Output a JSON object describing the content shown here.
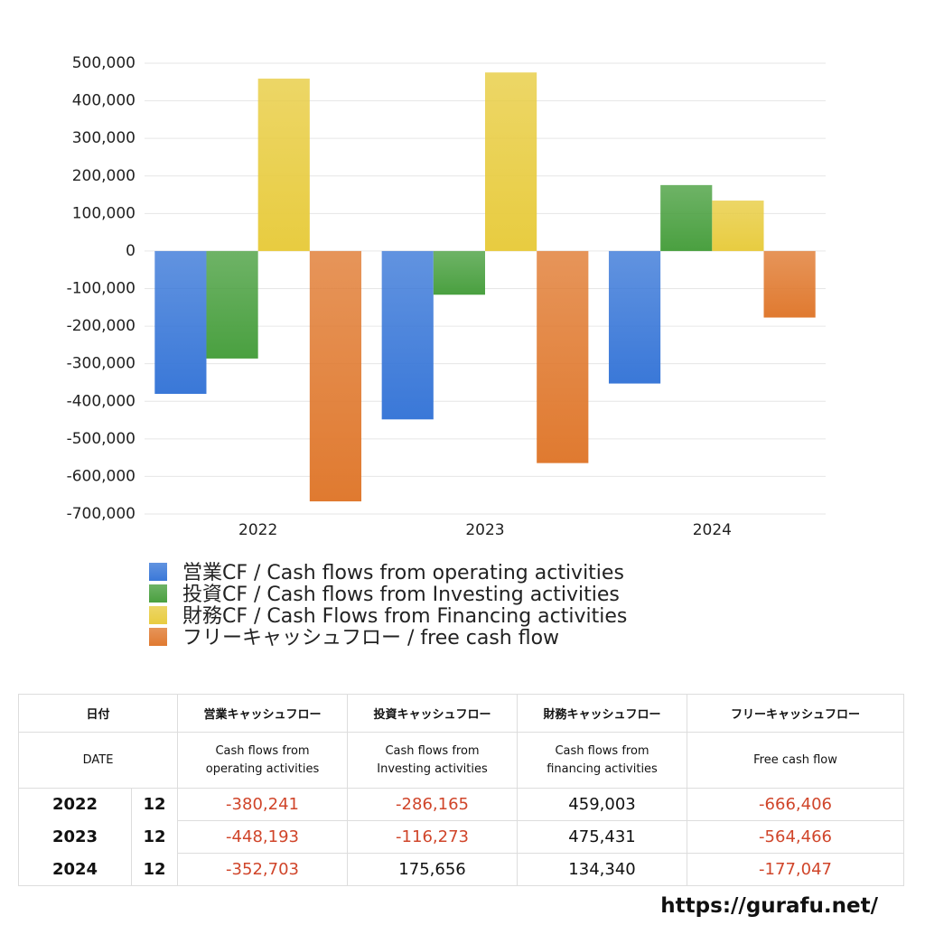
{
  "chart_data": {
    "type": "bar",
    "categories": [
      "2022",
      "2023",
      "2024"
    ],
    "series": [
      {
        "name": "営業CF / Cash flows from operating activities",
        "color": "#3a78d8",
        "values": [
          -380241,
          -448193,
          -352703
        ]
      },
      {
        "name": "投資CF / Cash flows from Investing activities",
        "color": "#4aa040",
        "values": [
          -286165,
          -116273,
          175656
        ]
      },
      {
        "name": "財務CF / Cash Flows from Financing activities",
        "color": "#e8cc40",
        "values": [
          459003,
          475431,
          134340
        ]
      },
      {
        "name": "フリーキャッシュフロー / free cash flow",
        "color": "#e07a30",
        "values": [
          -666406,
          -564466,
          -177047
        ]
      }
    ],
    "ylim": [
      -700000,
      500000
    ],
    "yticks": [
      {
        "value": 500000,
        "label": "500,000"
      },
      {
        "value": 400000,
        "label": "400,000"
      },
      {
        "value": 300000,
        "label": "300,000"
      },
      {
        "value": 200000,
        "label": "200,000"
      },
      {
        "value": 100000,
        "label": "100,000"
      },
      0,
      {
        "value": -100000,
        "label": "-100,000"
      },
      {
        "value": -200000,
        "label": "-200,000"
      },
      {
        "value": -300000,
        "label": "-300,000"
      },
      {
        "value": -400000,
        "label": "-400,000"
      },
      {
        "value": -500000,
        "label": "-500,000"
      },
      {
        "value": -600000,
        "label": "-600,000"
      },
      {
        "value": -700000,
        "label": "-700,000"
      }
    ],
    "grid": true
  },
  "table": {
    "header": [
      "日付",
      "営業キャッシュフロー",
      "投資キャッシュフロー",
      "財務キャッシュフロー",
      "フリーキャッシュフロー"
    ],
    "subheader": [
      "DATE",
      "Cash flows from operating activities",
      "Cash flows from Investing activities",
      "Cash flows from financing activities",
      "Free cash flow"
    ],
    "rows": [
      [
        "2022",
        "12",
        "-380,241",
        "-286,165",
        "459,003",
        "-666,406"
      ],
      [
        "2023",
        "12",
        "-448,193",
        "-116,273",
        "475,431",
        "-564,466"
      ],
      [
        "2024",
        "12",
        "-352,703",
        "175,656",
        "134,340",
        "-177,047"
      ]
    ]
  },
  "footer": "https://gurafu.net/"
}
